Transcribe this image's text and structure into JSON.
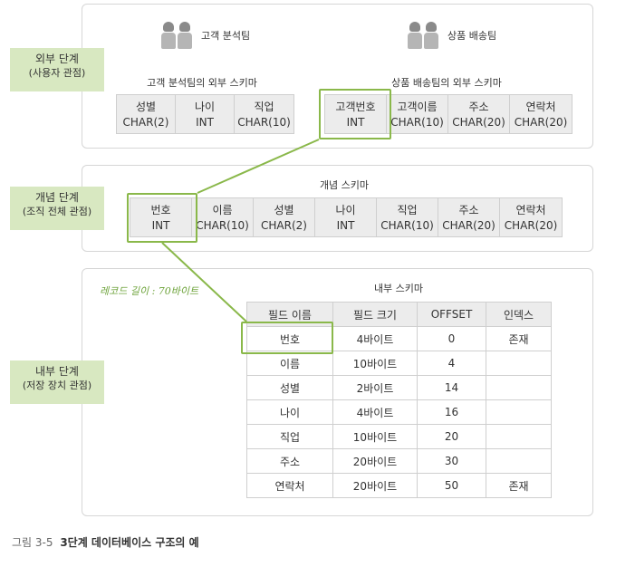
{
  "levels": {
    "external": {
      "title": "외부 단계",
      "subtitle": "(사용자 관점)"
    },
    "conceptual": {
      "title": "개념 단계",
      "subtitle": "(조직 전체 관점)"
    },
    "internal": {
      "title": "내부 단계",
      "subtitle": "(저장 장치 관점)"
    }
  },
  "external": {
    "teams": [
      {
        "name": "고객 분석팀",
        "icon": "people-icon"
      },
      {
        "name": "상품 배송팀",
        "icon": "people-icon"
      }
    ],
    "schemas": [
      {
        "title": "고객 분석팀의 외부 스키마",
        "fields": [
          {
            "name": "성별",
            "type": "CHAR(2)"
          },
          {
            "name": "나이",
            "type": "INT"
          },
          {
            "name": "직업",
            "type": "CHAR(10)"
          }
        ]
      },
      {
        "title": "상품 배송팀의 외부 스키마",
        "fields": [
          {
            "name": "고객번호",
            "type": "INT"
          },
          {
            "name": "고객이름",
            "type": "CHAR(10)"
          },
          {
            "name": "주소",
            "type": "CHAR(20)"
          },
          {
            "name": "연락처",
            "type": "CHAR(20)"
          }
        ]
      }
    ]
  },
  "conceptual": {
    "title": "개념 스키마",
    "fields": [
      {
        "name": "번호",
        "type": "INT"
      },
      {
        "name": "이름",
        "type": "CHAR(10)"
      },
      {
        "name": "성별",
        "type": "CHAR(2)"
      },
      {
        "name": "나이",
        "type": "INT"
      },
      {
        "name": "직업",
        "type": "CHAR(10)"
      },
      {
        "name": "주소",
        "type": "CHAR(20)"
      },
      {
        "name": "연락처",
        "type": "CHAR(20)"
      }
    ]
  },
  "internal": {
    "title": "내부 스키마",
    "record_length_note": "레코드 길이 : 70바이트",
    "headers": [
      "필드 이름",
      "필드 크기",
      "OFFSET",
      "인덱스"
    ],
    "rows": [
      [
        "번호",
        "4바이트",
        "0",
        "존재"
      ],
      [
        "이름",
        "10바이트",
        "4",
        ""
      ],
      [
        "성별",
        "2바이트",
        "14",
        ""
      ],
      [
        "나이",
        "4바이트",
        "16",
        ""
      ],
      [
        "직업",
        "10바이트",
        "20",
        ""
      ],
      [
        "주소",
        "20바이트",
        "30",
        ""
      ],
      [
        "연락처",
        "20바이트",
        "50",
        "존재"
      ]
    ]
  },
  "caption": {
    "number": "그림 3-5",
    "text": "3단계 데이터베이스 구조의 예"
  },
  "colors": {
    "highlight": "#8ab84a",
    "level_label_bg": "#d8e8c1",
    "cell_bg": "#ececec"
  }
}
